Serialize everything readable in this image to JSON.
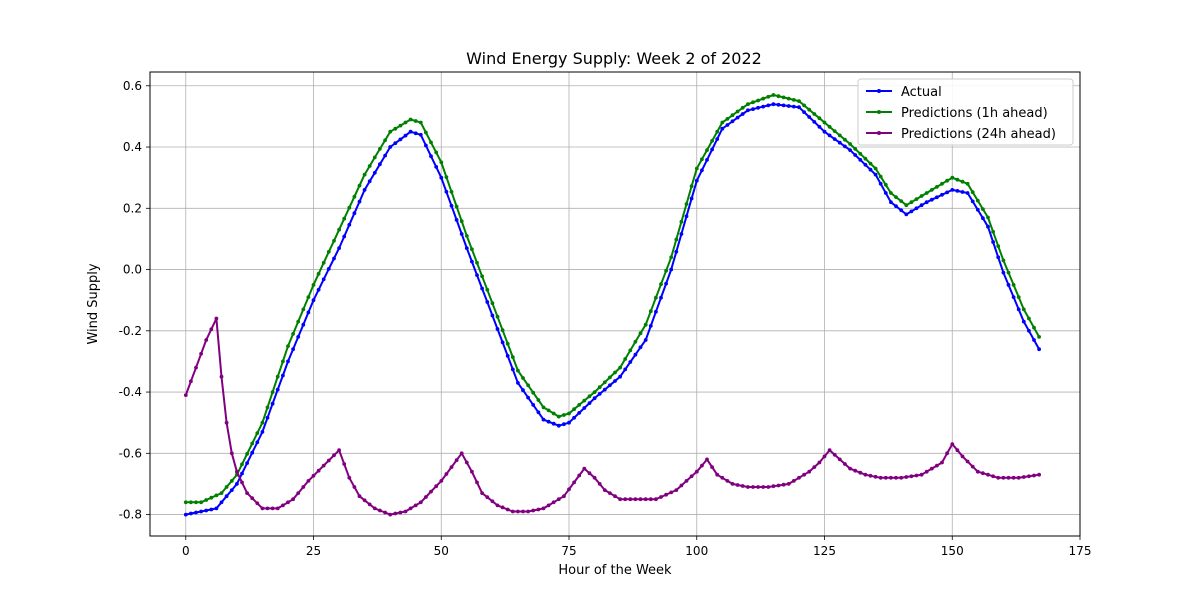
{
  "chart_data": {
    "type": "line",
    "title": "Wind Energy Supply: Week 2 of 2022",
    "xlabel": "Hour of the Week",
    "ylabel": "Wind Supply",
    "xlim": [
      -7,
      175
    ],
    "ylim": [
      -0.87,
      0.645
    ],
    "xticks": [
      0,
      25,
      50,
      75,
      100,
      125,
      150,
      175
    ],
    "yticks": [
      -0.8,
      -0.6,
      -0.4,
      -0.2,
      0.0,
      0.2,
      0.4,
      0.6
    ],
    "grid": true,
    "legend_position": "top-right",
    "series": [
      {
        "name": "Actual",
        "color": "#0000ff",
        "x": [
          0,
          6,
          10,
          15,
          20,
          25,
          30,
          35,
          40,
          44,
          46,
          50,
          55,
          60,
          65,
          70,
          73,
          75,
          80,
          85,
          90,
          95,
          100,
          105,
          110,
          115,
          120,
          125,
          130,
          135,
          138,
          141,
          145,
          150,
          153,
          157,
          160,
          164,
          167
        ],
        "values": [
          -0.8,
          -0.78,
          -0.7,
          -0.53,
          -0.3,
          -0.1,
          0.07,
          0.26,
          0.4,
          0.45,
          0.44,
          0.3,
          0.07,
          -0.15,
          -0.37,
          -0.49,
          -0.51,
          -0.5,
          -0.42,
          -0.35,
          -0.23,
          0.0,
          0.29,
          0.46,
          0.52,
          0.54,
          0.53,
          0.45,
          0.39,
          0.31,
          0.22,
          0.18,
          0.22,
          0.26,
          0.25,
          0.14,
          -0.01,
          -0.17,
          -0.26
        ]
      },
      {
        "name": "Predictions (1h ahead)",
        "color": "#008000",
        "x": [
          0,
          3,
          7,
          10,
          15,
          20,
          25,
          30,
          35,
          40,
          44,
          46,
          50,
          55,
          60,
          65,
          70,
          73,
          75,
          80,
          85,
          90,
          95,
          100,
          105,
          110,
          115,
          120,
          125,
          130,
          135,
          138,
          141,
          145,
          150,
          153,
          157,
          160,
          164,
          167
        ],
        "values": [
          -0.76,
          -0.76,
          -0.73,
          -0.67,
          -0.5,
          -0.25,
          -0.05,
          0.13,
          0.31,
          0.45,
          0.49,
          0.48,
          0.35,
          0.11,
          -0.11,
          -0.33,
          -0.45,
          -0.48,
          -0.47,
          -0.4,
          -0.32,
          -0.18,
          0.04,
          0.33,
          0.48,
          0.54,
          0.57,
          0.55,
          0.48,
          0.41,
          0.33,
          0.25,
          0.21,
          0.25,
          0.3,
          0.28,
          0.17,
          0.03,
          -0.13,
          -0.22
        ]
      },
      {
        "name": "Predictions (24h ahead)",
        "color": "#800080",
        "x": [
          0,
          2,
          4,
          6,
          7,
          8,
          9,
          10,
          12,
          15,
          18,
          21,
          24,
          27,
          30,
          32,
          34,
          37,
          40,
          43,
          46,
          50,
          54,
          56,
          58,
          61,
          64,
          67,
          70,
          74,
          78,
          80,
          82,
          85,
          88,
          92,
          96,
          100,
          102,
          104,
          107,
          110,
          114,
          118,
          122,
          124,
          126,
          128,
          130,
          133,
          136,
          140,
          144,
          148,
          150,
          152,
          155,
          159,
          163,
          167
        ],
        "values": [
          -0.41,
          -0.32,
          -0.23,
          -0.16,
          -0.35,
          -0.5,
          -0.6,
          -0.66,
          -0.73,
          -0.78,
          -0.78,
          -0.75,
          -0.69,
          -0.64,
          -0.59,
          -0.68,
          -0.74,
          -0.78,
          -0.8,
          -0.79,
          -0.76,
          -0.69,
          -0.6,
          -0.66,
          -0.73,
          -0.77,
          -0.79,
          -0.79,
          -0.78,
          -0.74,
          -0.65,
          -0.68,
          -0.72,
          -0.75,
          -0.75,
          -0.75,
          -0.72,
          -0.66,
          -0.62,
          -0.67,
          -0.7,
          -0.71,
          -0.71,
          -0.7,
          -0.66,
          -0.63,
          -0.59,
          -0.62,
          -0.65,
          -0.67,
          -0.68,
          -0.68,
          -0.67,
          -0.63,
          -0.57,
          -0.61,
          -0.66,
          -0.68,
          -0.68,
          -0.67
        ]
      }
    ]
  }
}
